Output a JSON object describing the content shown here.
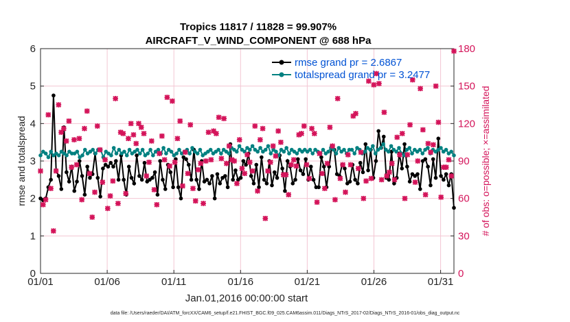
{
  "chart_data": {
    "type": "line",
    "title_line1": "Tropics 11817 / 11828 = 99.907%",
    "title_line2": "AIRCRAFT_V_WIND_COMPONENT @ 688 hPa",
    "ylabel": "rmse and totalspread",
    "y2label": "# of obs: o=possible; ×=assimilated",
    "xlabel": "Jan.01,2016 00:00:00 start",
    "footnote": "data file: /Users/raeder/DAI/ATM_forcXX/CAM6_setup/f.e21.FHIST_BGC.f09_025.CAM6assim.011/Diags_NTrS_2017-02/Diags_NTrS_2016-01/obs_diag_output.nc",
    "xlim": [
      1,
      32
    ],
    "ylim": [
      0,
      6
    ],
    "y2lim": [
      0,
      180
    ],
    "xtick_values": [
      1,
      6,
      11,
      16,
      21,
      26,
      31
    ],
    "xtick_labels": [
      "01/01",
      "01/06",
      "01/11",
      "01/16",
      "01/21",
      "01/26",
      "01/31"
    ],
    "ytick_labels": [
      "0",
      "1",
      "2",
      "3",
      "4",
      "5",
      "6"
    ],
    "y2tick_labels": [
      "0",
      "30",
      "60",
      "90",
      "120",
      "150",
      "180"
    ],
    "legend": [
      {
        "label": "rmse grand pr = 2.6867",
        "color": "#000000"
      },
      {
        "label": "totalspread grand pr = 3.2477",
        "color": "#008080"
      }
    ],
    "series": [
      {
        "name": "rmse",
        "color": "#000000",
        "values": [
          2.0,
          1.95,
          2.0,
          2.3,
          2.5,
          4.75,
          2.75,
          2.6,
          2.25,
          3.9,
          2.7,
          2.45,
          2.85,
          2.2,
          2.45,
          3.0,
          2.6,
          2.1,
          2.85,
          2.55,
          2.65,
          3.2,
          2.55,
          2.05,
          2.8,
          2.9,
          2.85,
          2.95,
          2.85,
          3.0,
          2.5,
          3.15,
          2.5,
          2.1,
          2.85,
          2.55,
          2.4,
          3.15,
          2.6,
          2.5,
          2.95,
          2.45,
          2.5,
          2.55,
          2.7,
          2.1,
          3.0,
          2.5,
          2.25,
          2.9,
          2.7,
          2.3,
          3.05,
          2.3,
          2.0,
          3.1,
          3.05,
          2.9,
          2.5,
          3.3,
          2.5,
          2.25,
          3.0,
          2.45,
          2.5,
          2.4,
          2.6,
          2.0,
          2.65,
          2.4,
          2.55,
          2.6,
          2.3,
          3.45,
          2.5,
          2.75,
          2.5,
          2.55,
          3.0,
          2.9,
          3.2,
          2.6,
          2.4,
          2.9,
          2.3,
          3.1,
          2.5,
          2.4,
          3.0,
          2.35,
          2.7,
          2.55,
          3.15,
          2.8,
          2.2,
          3.0,
          2.85,
          2.4,
          2.5,
          3.05,
          2.75,
          2.65,
          3.05,
          2.5,
          2.85,
          2.5,
          2.3,
          2.3,
          3.1,
          2.85,
          2.3,
          2.85,
          3.4,
          3.3,
          2.65,
          2.6,
          2.9,
          2.8,
          2.4,
          2.45,
          2.9,
          2.5,
          2.4,
          2.95,
          2.7,
          3.45,
          2.75,
          3.3,
          2.55,
          3.0,
          3.8,
          3.35,
          3.65,
          2.55,
          2.5,
          3.25,
          2.4,
          2.55,
          3.2,
          2.8,
          3.45,
          2.85,
          2.45,
          2.65,
          2.6,
          2.65,
          2.25,
          3.0,
          3.05,
          2.85,
          2.35,
          3.05,
          2.55,
          3.6,
          2.6,
          2.5,
          2.65,
          2.35,
          2.65,
          1.75
        ]
      },
      {
        "name": "totalspread",
        "color": "#008080",
        "values": [
          3.15,
          3.25,
          3.2,
          3.1,
          3.25,
          3.15,
          3.2,
          3.15,
          3.25,
          3.2,
          3.15,
          3.25,
          3.2,
          3.2,
          3.25,
          3.1,
          3.15,
          3.3,
          3.2,
          3.25,
          3.3,
          3.2,
          3.3,
          3.3,
          3.1,
          3.25,
          3.2,
          3.15,
          3.35,
          3.2,
          3.3,
          3.2,
          3.25,
          3.15,
          3.3,
          3.2,
          3.25,
          3.3,
          3.2,
          3.3,
          3.15,
          3.2,
          3.3,
          3.15,
          3.25,
          3.3,
          3.2,
          3.35,
          3.2,
          3.3,
          3.25,
          3.15,
          3.2,
          3.3,
          3.2,
          3.25,
          3.3,
          3.2,
          3.35,
          3.25,
          3.2,
          3.3,
          3.15,
          3.2,
          3.25,
          3.3,
          3.2,
          3.25,
          3.3,
          3.2,
          3.3,
          3.25,
          3.2,
          3.35,
          3.3,
          3.25,
          3.4,
          3.3,
          3.25,
          3.35,
          3.3,
          3.4,
          3.3,
          3.25,
          3.35,
          3.25,
          3.3,
          3.4,
          3.2,
          3.3,
          3.25,
          3.15,
          3.3,
          3.25,
          3.35,
          3.2,
          3.3,
          3.25,
          3.2,
          3.3,
          3.25,
          3.3,
          3.25,
          3.3,
          3.2,
          3.3,
          3.25,
          3.2,
          3.3,
          3.2,
          3.25,
          3.35,
          3.3,
          3.2,
          3.35,
          3.25,
          3.3,
          3.2,
          3.3,
          3.3,
          3.2,
          3.35,
          3.3,
          3.2,
          3.25,
          3.35,
          3.3,
          3.4,
          3.2,
          3.3,
          3.35,
          3.45,
          3.3,
          3.25,
          3.4,
          3.3,
          3.25,
          3.35,
          3.2,
          3.15,
          3.3,
          3.35,
          3.2,
          3.3,
          3.25,
          3.3,
          3.2,
          3.3,
          3.35,
          3.2,
          3.3,
          3.25,
          3.3,
          3.35,
          3.25,
          3.3,
          3.2,
          3.25,
          3.15
        ]
      },
      {
        "name": "possible obs (o)",
        "color": "#d4145a",
        "values": [
          82,
          55,
          59,
          127,
          68,
          34,
          82,
          135,
          113,
          116,
          106,
          122,
          85,
          107,
          87,
          108,
          59,
          116,
          130,
          80,
          45,
          65,
          118,
          99,
          73,
          91,
          52,
          62,
          74,
          140,
          56,
          113,
          112,
          64,
          108,
          120,
          111,
          104,
          120,
          117,
          112,
          78,
          89,
          106,
          67,
          55,
          96,
          110,
          91,
          141,
          86,
          138,
          89,
          108,
          122,
          70,
          97,
          80,
          119,
          68,
          58,
          83,
          88,
          56,
          90,
          113,
          91,
          114,
          112,
          125,
          92,
          124,
          88,
          102,
          91,
          90,
          72,
          107,
          84,
          80,
          95,
          89,
          82,
          118,
          66,
          107,
          116,
          44,
          82,
          89,
          102,
          94,
          114,
          105,
          79,
          79,
          63,
          87,
          91,
          86,
          111,
          112,
          118,
          87,
          76,
          116,
          112,
          57,
          96,
          80,
          68,
          88,
          117,
          102,
          59,
          140,
          76,
          87,
          65,
          95,
          87,
          126,
          128,
          84,
          97,
          60,
          74,
          154,
          76,
          151,
          160,
          152,
          75,
          129,
          78,
          81,
          88,
          75,
          109,
          95,
          112,
          60,
          95,
          119,
          155,
          73,
          90,
          148,
          115,
          63,
          104,
          97,
          103,
          150,
          121,
          61,
          85,
          85,
          91,
          78,
          178
        ]
      }
    ]
  }
}
